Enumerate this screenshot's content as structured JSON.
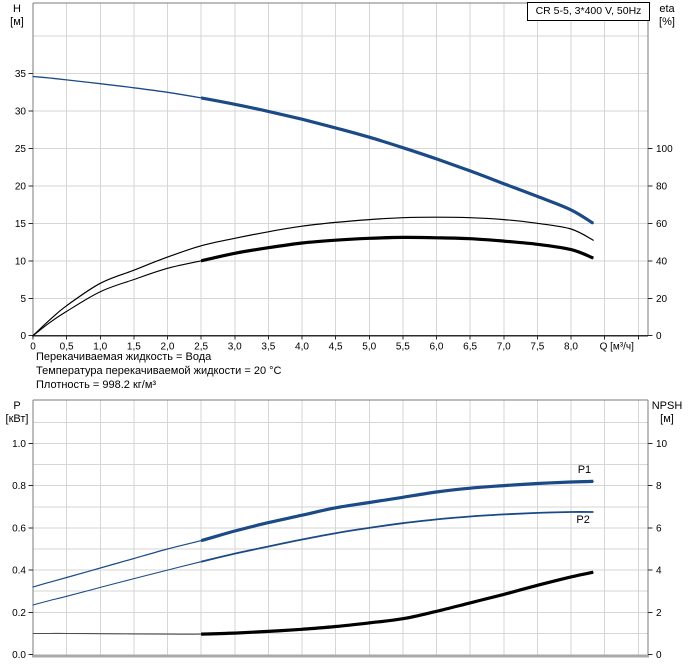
{
  "title_box": {
    "label": "CR 5-5, 3*400 V, 50Hz"
  },
  "info_lines": [
    "Перекачиваемая жидкость = Вода",
    "Температура перекачиваемой жидкости = 20 °C",
    "Плотность = 998.2 кг/м³"
  ],
  "colors": {
    "curve_blue": "#1b4a87",
    "curve_black": "#000000",
    "curve_gray": "#4f4f4f",
    "grid": "#d6d6d6",
    "border": "#7b7b7b",
    "axis_dark": "#2b2b2b",
    "axis_thick_gray": "#a9a9a9",
    "text": "#000000"
  },
  "chart_data": [
    {
      "name": "head-efficiency",
      "type": "line",
      "grid": true,
      "legend_position": "none",
      "xlabel": "Q [м³/ч]",
      "ylabel_left": [
        "H",
        "[м]"
      ],
      "ylabel_right": [
        "eta",
        "[%]"
      ],
      "xlim": [
        0,
        9.14
      ],
      "ylim_left": [
        0,
        44.3
      ],
      "ylim_right": [
        0,
        177
      ],
      "x_tick_labels": [
        "0",
        "0,5",
        "1,0",
        "1,5",
        "2,0",
        "2,5",
        "3,0",
        "3,5",
        "4,0",
        "4,5",
        "5,0",
        "5,5",
        "6,0",
        "6,5",
        "7,0",
        "7,5",
        "8,0"
      ],
      "y_left_ticks": {
        "values": [
          0,
          5,
          10,
          15,
          20,
          25,
          30,
          35
        ],
        "labels": [
          "0",
          "5",
          "10",
          "15",
          "20",
          "25",
          "30",
          "35"
        ]
      },
      "y_right_ticks": {
        "values": [
          0,
          20,
          40,
          60,
          80,
          100
        ],
        "labels": [
          "0",
          "20",
          "40",
          "60",
          "80",
          "100"
        ]
      },
      "q": [
        0,
        0.25,
        0.5,
        1,
        1.5,
        2,
        2.5,
        3,
        3.5,
        4,
        4.5,
        5,
        5.5,
        6,
        6.5,
        7,
        7.5,
        8,
        8.33
      ],
      "series": [
        {
          "name": "H",
          "axis": "left",
          "color": "blue",
          "split_q": 2.5,
          "width_thin": 1.3,
          "width_thick": 3.2,
          "values": [
            34.6,
            34.4,
            34.15,
            33.65,
            33.1,
            32.5,
            31.75,
            30.9,
            29.95,
            28.9,
            27.75,
            26.5,
            25.1,
            23.6,
            22.0,
            20.3,
            18.6,
            16.8,
            15.0
          ]
        },
        {
          "name": "eta-pump",
          "axis": "right",
          "color": "black",
          "width_thin": 1.2,
          "values": [
            0,
            8.5,
            16,
            28,
            35,
            42,
            48,
            52,
            55.5,
            58.5,
            60.5,
            62,
            63,
            63.3,
            63,
            62,
            60,
            57,
            51
          ]
        },
        {
          "name": "eta-pump-motor",
          "axis": "right",
          "color": "black",
          "split_q": 2.5,
          "width_thin": 1.1,
          "width_thick": 3.2,
          "values": [
            0,
            7,
            13,
            23.5,
            30,
            36,
            40,
            44,
            47,
            49.5,
            51,
            52,
            52.5,
            52.3,
            51.8,
            50.5,
            48.8,
            46,
            41.5
          ]
        }
      ],
      "annotations": []
    },
    {
      "name": "power-npsh",
      "type": "line",
      "grid": true,
      "legend_position": "inline-labels",
      "xlabel": "",
      "ylabel_left": [
        "P",
        "[кВт]"
      ],
      "ylabel_right": [
        "NPSH",
        "[м]"
      ],
      "xlim": [
        0,
        9.14
      ],
      "ylim_left": [
        0,
        1.2
      ],
      "ylim_right": [
        0,
        12
      ],
      "y_left_ticks": {
        "values": [
          0,
          0.2,
          0.4,
          0.6,
          0.8,
          1
        ],
        "labels": [
          "0.0",
          "0.2",
          "0.4",
          "0.6",
          "0.8",
          "1.0"
        ]
      },
      "y_right_ticks": {
        "values": [
          0,
          2,
          4,
          6,
          8,
          10
        ],
        "labels": [
          "0",
          "2",
          "4",
          "6",
          "8",
          "10"
        ]
      },
      "q": [
        0,
        0.25,
        0.5,
        1,
        1.5,
        2,
        2.5,
        3,
        3.5,
        4,
        4.5,
        5,
        5.5,
        6,
        6.5,
        7,
        7.5,
        8,
        8.33
      ],
      "series": [
        {
          "name": "P1",
          "axis": "left",
          "color": "blue",
          "split_q": 2.5,
          "width_thin": 1.2,
          "width_thick": 3.2,
          "values": [
            0.32,
            0.343,
            0.365,
            0.41,
            0.455,
            0.5,
            0.54,
            0.585,
            0.625,
            0.66,
            0.695,
            0.72,
            0.745,
            0.77,
            0.788,
            0.8,
            0.81,
            0.817,
            0.82
          ]
        },
        {
          "name": "P2",
          "axis": "left",
          "color": "blue",
          "split_q": 2.5,
          "width_thin": 1.1,
          "width_thick": 1.8,
          "values": [
            0.235,
            0.256,
            0.276,
            0.318,
            0.36,
            0.4,
            0.44,
            0.478,
            0.512,
            0.545,
            0.575,
            0.6,
            0.622,
            0.64,
            0.654,
            0.664,
            0.671,
            0.675,
            0.675
          ]
        },
        {
          "name": "NPSH",
          "axis": "right",
          "color": "black",
          "thin_color": "gray",
          "split_q": 2.5,
          "width_thin": 1.1,
          "width_thick": 3.2,
          "values": [
            1.0,
            1.0,
            1.0,
            0.99,
            0.98,
            0.97,
            0.97,
            1.02,
            1.1,
            1.2,
            1.33,
            1.5,
            1.7,
            2.05,
            2.45,
            2.85,
            3.28,
            3.68,
            3.9
          ]
        }
      ],
      "annotations": [
        {
          "label": "P1",
          "q": 8.2,
          "v": 0.86,
          "axis": "left"
        },
        {
          "label": "P2",
          "q": 8.18,
          "v": 0.623,
          "axis": "left"
        }
      ]
    }
  ]
}
